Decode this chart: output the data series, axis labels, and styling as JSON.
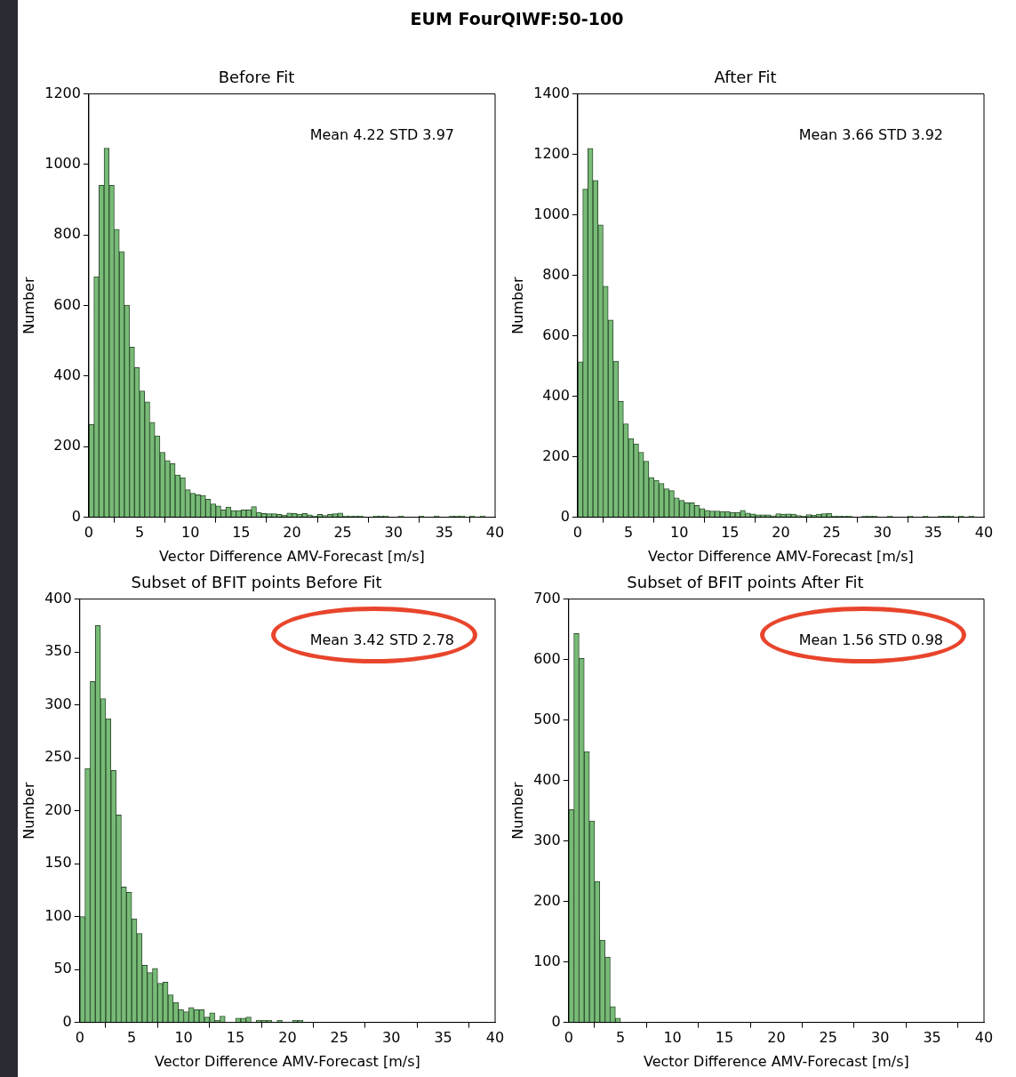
{
  "chart_data": [
    {
      "type": "histogram",
      "title": "Before Fit",
      "xlabel": "Vector Difference AMV-Forecast [m/s]",
      "ylabel": "Number",
      "color": "#77bb77",
      "annotations": [
        "EUM FourQIWF:50-100",
        "Mean 4.22 STD 3.97"
      ],
      "bins": [
        0,
        0.5,
        1,
        1.5,
        2,
        2.5,
        3,
        3.5,
        4,
        4.5,
        5,
        5.5,
        6,
        6.5,
        7,
        7.5,
        8,
        8.5,
        9,
        9.5,
        10,
        10.5,
        11,
        11.5,
        12,
        12.5,
        13,
        13.5,
        14,
        14.5,
        15,
        15.5,
        16,
        16.5,
        17,
        17.5,
        18,
        18.5,
        19,
        19.5,
        20,
        20.5,
        21,
        21.5,
        22,
        22.5,
        23,
        23.5,
        24,
        24.5,
        25,
        25.5,
        26,
        26.5,
        27,
        27.5,
        28,
        28.5,
        29,
        29.5,
        30,
        30.5,
        31,
        31.5,
        32,
        32.5,
        33,
        33.5,
        34,
        34.5,
        35,
        35.5,
        36,
        36.5,
        37,
        37.5,
        38,
        38.5,
        39,
        39.5,
        40
      ],
      "values": [
        263,
        682,
        941,
        1046,
        941,
        816,
        753,
        601,
        482,
        424,
        358,
        327,
        269,
        231,
        184,
        161,
        152,
        120,
        112,
        78,
        68,
        64,
        62,
        51,
        38,
        32,
        21,
        29,
        19,
        19,
        21,
        21,
        30,
        14,
        11,
        10,
        10,
        8,
        6,
        12,
        11,
        9,
        11,
        7,
        4,
        8,
        5,
        8,
        10,
        12,
        4,
        4,
        4,
        4,
        0,
        0,
        4,
        4,
        4,
        0,
        0,
        4,
        0,
        0,
        0,
        4,
        0,
        0,
        4,
        0,
        0,
        4,
        4,
        4,
        0,
        4,
        0,
        4,
        0,
        0
      ],
      "xlim": [
        0,
        40
      ],
      "xticks": [
        0,
        5,
        10,
        15,
        20,
        25,
        30,
        35,
        40
      ],
      "ylim": [
        0,
        1200
      ],
      "yticks": [
        0,
        200,
        400,
        600,
        800,
        1000,
        1200
      ]
    },
    {
      "type": "histogram",
      "title": "After Fit",
      "xlabel": "Vector Difference AMV-Forecast [m/s]",
      "ylabel": "Number",
      "color": "#77bb77",
      "annotations": [
        "Mean 3.66 STD 3.92"
      ],
      "bins": [
        0,
        0.5,
        1,
        1.5,
        2,
        2.5,
        3,
        3.5,
        4,
        4.5,
        5,
        5.5,
        6,
        6.5,
        7,
        7.5,
        8,
        8.5,
        9,
        9.5,
        10,
        10.5,
        11,
        11.5,
        12,
        12.5,
        13,
        13.5,
        14,
        14.5,
        15,
        15.5,
        16,
        16.5,
        17,
        17.5,
        18,
        18.5,
        19,
        19.5,
        20,
        20.5,
        21,
        21.5,
        22,
        22.5,
        23,
        23.5,
        24,
        24.5,
        25,
        25.5,
        26,
        26.5,
        27,
        27.5,
        28,
        28.5,
        29,
        29.5,
        30,
        30.5,
        31,
        31.5,
        32,
        32.5,
        33,
        33.5,
        34,
        34.5,
        35,
        35.5,
        36,
        36.5,
        37,
        37.5,
        38,
        38.5,
        39,
        39.5,
        40
      ],
      "values": [
        514,
        1085,
        1220,
        1114,
        967,
        764,
        652,
        516,
        383,
        309,
        260,
        243,
        215,
        185,
        132,
        122,
        112,
        94,
        88,
        64,
        56,
        48,
        48,
        39,
        29,
        23,
        21,
        21,
        19,
        19,
        16,
        16,
        23,
        14,
        11,
        8,
        8,
        8,
        5,
        12,
        10,
        11,
        10,
        6,
        4,
        9,
        7,
        10,
        12,
        13,
        4,
        4,
        4,
        4,
        0,
        0,
        4,
        4,
        4,
        0,
        0,
        4,
        0,
        0,
        0,
        4,
        0,
        0,
        4,
        0,
        0,
        4,
        4,
        4,
        0,
        4,
        0,
        4,
        0,
        0
      ],
      "xlim": [
        0,
        40
      ],
      "xticks": [
        0,
        5,
        10,
        15,
        20,
        25,
        30,
        35,
        40
      ],
      "ylim": [
        0,
        1400
      ],
      "yticks": [
        0,
        200,
        400,
        600,
        800,
        1000,
        1200,
        1400
      ]
    },
    {
      "type": "histogram",
      "title": "Subset of BFIT points Before Fit",
      "xlabel": "Vector Difference AMV-Forecast [m/s]",
      "ylabel": "Number",
      "color": "#77bb77",
      "annotations": [
        "Mean 3.42 STD 2.78"
      ],
      "bins": [
        0,
        0.5,
        1,
        1.5,
        2,
        2.5,
        3,
        3.5,
        4,
        4.5,
        5,
        5.5,
        6,
        6.5,
        7,
        7.5,
        8,
        8.5,
        9,
        9.5,
        10,
        10.5,
        11,
        11.5,
        12,
        12.5,
        13,
        13.5,
        14,
        14.5,
        15,
        15.5,
        16,
        16.5,
        17,
        17.5,
        18,
        18.5,
        19,
        19.5,
        20,
        20.5,
        21,
        21.5
      ],
      "values": [
        100,
        240,
        322,
        375,
        306,
        287,
        238,
        196,
        128,
        123,
        98,
        84,
        54,
        47,
        51,
        37,
        38,
        26,
        19,
        12,
        10,
        14,
        12,
        12,
        5,
        9,
        2,
        6,
        0,
        0,
        4,
        4,
        5,
        0,
        2,
        2,
        2,
        0,
        2,
        0,
        0,
        2,
        2
      ],
      "xlim": [
        0,
        40
      ],
      "xticks": [
        0,
        5,
        10,
        15,
        20,
        25,
        30,
        35,
        40
      ],
      "ylim": [
        0,
        400
      ],
      "yticks": [
        0,
        50,
        100,
        150,
        200,
        250,
        300,
        350,
        400
      ]
    },
    {
      "type": "histogram",
      "title": "Subset of BFIT points After Fit",
      "xlabel": "Vector Difference AMV-Forecast [m/s]",
      "ylabel": "Number",
      "color": "#77bb77",
      "annotations": [
        "Mean 1.56 STD 0.98"
      ],
      "bins": [
        0,
        0.5,
        1,
        1.5,
        2,
        2.5,
        3,
        3.5,
        4,
        4.5,
        5,
        5.5
      ],
      "values": [
        352,
        643,
        602,
        448,
        333,
        233,
        136,
        108,
        26,
        7,
        0
      ],
      "xlim": [
        0,
        40
      ],
      "xticks": [
        0,
        5,
        10,
        15,
        20,
        25,
        30,
        35,
        40
      ],
      "ylim": [
        0,
        700
      ],
      "yticks": [
        0,
        100,
        200,
        300,
        400,
        500,
        600,
        700
      ]
    }
  ]
}
